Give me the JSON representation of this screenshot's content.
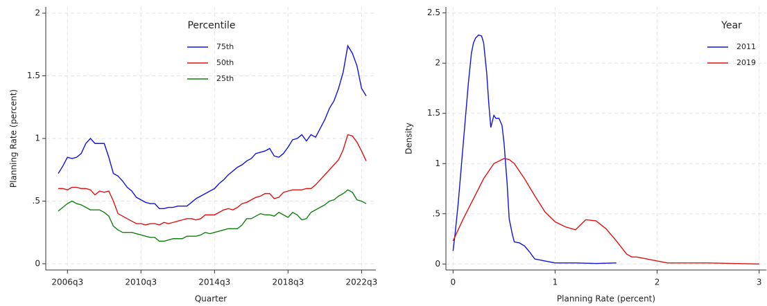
{
  "chart_data": [
    {
      "type": "line",
      "x_label": "Quarter",
      "y_label": "Planning Rate (percent)",
      "legend_title": "Percentile",
      "grid": true,
      "categories": [
        null,
        null,
        "2006q3",
        null,
        null,
        null,
        null,
        null,
        null,
        null,
        null,
        null,
        null,
        null,
        null,
        null,
        null,
        null,
        "2010q3",
        null,
        null,
        null,
        null,
        null,
        null,
        null,
        null,
        null,
        null,
        null,
        null,
        null,
        null,
        null,
        "2014q3",
        null,
        null,
        null,
        null,
        null,
        null,
        null,
        null,
        null,
        null,
        null,
        null,
        null,
        null,
        null,
        "2018q3",
        null,
        null,
        null,
        null,
        null,
        null,
        null,
        null,
        null,
        null,
        null,
        null,
        null,
        null,
        null,
        "2022q3",
        null
      ],
      "ylim": [
        -0.05,
        2.05
      ],
      "yticks": [
        0,
        {
          "value": 0.5,
          "label": ".5"
        },
        1,
        1.5,
        2
      ],
      "series": [
        {
          "name": "75th",
          "color": "#1010e0",
          "values": [
            0.72,
            0.78,
            0.85,
            0.84,
            0.85,
            0.88,
            0.96,
            1.0,
            0.96,
            0.96,
            0.96,
            0.85,
            0.72,
            0.7,
            0.66,
            0.61,
            0.58,
            0.53,
            0.51,
            0.49,
            0.48,
            0.48,
            0.44,
            0.44,
            0.45,
            0.45,
            0.46,
            0.46,
            0.46,
            0.49,
            0.52,
            0.54,
            0.56,
            0.58,
            0.6,
            0.64,
            0.67,
            0.71,
            0.74,
            0.77,
            0.79,
            0.82,
            0.84,
            0.88,
            0.89,
            0.9,
            0.92,
            0.86,
            0.85,
            0.88,
            0.93,
            0.99,
            1.0,
            1.03,
            0.98,
            1.03,
            1.01,
            1.08,
            1.15,
            1.24,
            1.3,
            1.4,
            1.53,
            1.74,
            1.68,
            1.58,
            1.4,
            1.34
          ]
        },
        {
          "name": "50th",
          "color": "#e01010",
          "values": [
            0.6,
            0.6,
            0.59,
            0.61,
            0.61,
            0.6,
            0.6,
            0.59,
            0.55,
            0.58,
            0.57,
            0.58,
            0.5,
            0.4,
            0.38,
            0.36,
            0.34,
            0.32,
            0.32,
            0.31,
            0.32,
            0.32,
            0.31,
            0.33,
            0.32,
            0.33,
            0.34,
            0.35,
            0.36,
            0.36,
            0.35,
            0.36,
            0.39,
            0.39,
            0.39,
            0.41,
            0.43,
            0.44,
            0.43,
            0.45,
            0.48,
            0.49,
            0.51,
            0.53,
            0.54,
            0.56,
            0.56,
            0.52,
            0.53,
            0.57,
            0.58,
            0.59,
            0.59,
            0.59,
            0.6,
            0.6,
            0.63,
            0.67,
            0.71,
            0.75,
            0.79,
            0.83,
            0.91,
            1.03,
            1.02,
            0.97,
            0.9,
            0.82
          ]
        },
        {
          "name": "25th",
          "color": "#108010",
          "values": [
            0.42,
            0.45,
            0.48,
            0.5,
            0.48,
            0.47,
            0.45,
            0.43,
            0.43,
            0.43,
            0.41,
            0.38,
            0.3,
            0.27,
            0.25,
            0.25,
            0.25,
            0.24,
            0.23,
            0.22,
            0.21,
            0.21,
            0.18,
            0.18,
            0.19,
            0.2,
            0.2,
            0.2,
            0.22,
            0.22,
            0.22,
            0.23,
            0.25,
            0.24,
            0.25,
            0.26,
            0.27,
            0.28,
            0.28,
            0.28,
            0.31,
            0.36,
            0.36,
            0.38,
            0.4,
            0.39,
            0.39,
            0.38,
            0.41,
            0.39,
            0.37,
            0.41,
            0.39,
            0.35,
            0.36,
            0.41,
            0.43,
            0.45,
            0.47,
            0.5,
            0.51,
            0.54,
            0.56,
            0.59,
            0.57,
            0.51,
            0.5,
            0.48
          ]
        }
      ]
    },
    {
      "type": "line",
      "x_label": "Planning Rate (percent)",
      "y_label": "Density",
      "legend_title": "Year",
      "grid": true,
      "xlim": [
        -0.07,
        3.07
      ],
      "xticks": [
        0,
        1,
        2,
        3
      ],
      "ylim": [
        -0.06,
        2.56
      ],
      "yticks": [
        0,
        {
          "value": 0.5,
          "label": ".5"
        },
        1,
        1.5,
        2,
        2.5
      ],
      "series": [
        {
          "name": "2011",
          "color": "#1010e0",
          "x": [
            0.0,
            0.02,
            0.05,
            0.1,
            0.15,
            0.18,
            0.2,
            0.22,
            0.25,
            0.28,
            0.3,
            0.33,
            0.35,
            0.37,
            0.38,
            0.4,
            0.42,
            0.45,
            0.48,
            0.5,
            0.53,
            0.55,
            0.58,
            0.6,
            0.65,
            0.7,
            0.75,
            0.8,
            0.9,
            1.0,
            1.2,
            1.4,
            1.6
          ],
          "values": [
            0.13,
            0.3,
            0.6,
            1.2,
            1.8,
            2.1,
            2.2,
            2.25,
            2.28,
            2.27,
            2.2,
            1.9,
            1.6,
            1.36,
            1.4,
            1.48,
            1.45,
            1.45,
            1.38,
            1.2,
            0.8,
            0.45,
            0.3,
            0.22,
            0.21,
            0.18,
            0.12,
            0.05,
            0.03,
            0.01,
            0.01,
            0.005,
            0.01
          ]
        },
        {
          "name": "2019",
          "color": "#e01010",
          "x": [
            0.0,
            0.1,
            0.2,
            0.3,
            0.4,
            0.5,
            0.55,
            0.6,
            0.7,
            0.8,
            0.9,
            1.0,
            1.1,
            1.2,
            1.3,
            1.4,
            1.5,
            1.6,
            1.7,
            1.75,
            1.8,
            1.9,
            2.0,
            2.1,
            2.5,
            3.0
          ],
          "values": [
            0.23,
            0.45,
            0.65,
            0.85,
            1.0,
            1.05,
            1.04,
            1.0,
            0.85,
            0.68,
            0.52,
            0.42,
            0.37,
            0.34,
            0.44,
            0.43,
            0.35,
            0.23,
            0.1,
            0.07,
            0.07,
            0.05,
            0.03,
            0.01,
            0.01,
            0
          ]
        }
      ]
    }
  ]
}
